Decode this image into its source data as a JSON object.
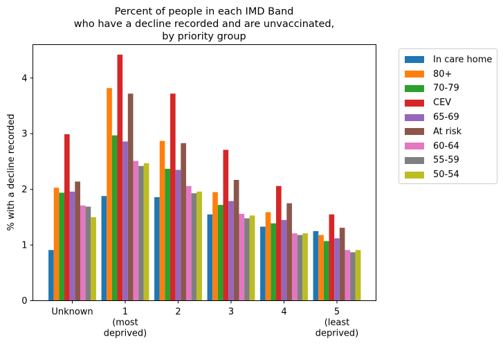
{
  "chart_data": {
    "type": "bar",
    "title": "Percent of people in each IMD Band\nwho have a decline recorded and are unvaccinated,\nby priority group",
    "title_lines": [
      "Percent of people in each IMD Band",
      "who have a decline recorded and are unvaccinated,",
      "by priority group"
    ],
    "xlabel": "",
    "ylabel": "% with a decline recorded",
    "ylim": [
      0,
      4.6
    ],
    "yticks": [
      "0",
      "1",
      "2",
      "3",
      "4"
    ],
    "categories": [
      [
        "Unknown"
      ],
      [
        "1",
        "(most",
        "deprived)"
      ],
      [
        "2"
      ],
      [
        "3"
      ],
      [
        "4"
      ],
      [
        "5",
        "(least",
        "deprived)"
      ]
    ],
    "legend_position": "outside-right",
    "grid": false,
    "series": [
      {
        "name": "In care home",
        "color": "#1f77b4",
        "values": [
          0.91,
          1.88,
          1.86,
          1.55,
          1.33,
          1.25
        ]
      },
      {
        "name": "80+",
        "color": "#ff7f0e",
        "values": [
          2.03,
          3.82,
          2.87,
          1.95,
          1.59,
          1.18
        ]
      },
      {
        "name": "70-79",
        "color": "#2ca02c",
        "values": [
          1.94,
          2.97,
          2.37,
          1.72,
          1.39,
          1.07
        ]
      },
      {
        "name": "CEV",
        "color": "#d62728",
        "values": [
          2.99,
          4.42,
          3.72,
          2.71,
          2.06,
          1.55
        ]
      },
      {
        "name": "65-69",
        "color": "#9467bd",
        "values": [
          1.96,
          2.86,
          2.35,
          1.79,
          1.45,
          1.12
        ]
      },
      {
        "name": "At risk",
        "color": "#8c564b",
        "values": [
          2.14,
          3.72,
          2.83,
          2.17,
          1.75,
          1.31
        ]
      },
      {
        "name": "60-64",
        "color": "#e377c2",
        "values": [
          1.71,
          2.51,
          2.06,
          1.56,
          1.21,
          0.91
        ]
      },
      {
        "name": "55-59",
        "color": "#7f7f7f",
        "values": [
          1.69,
          2.42,
          1.93,
          1.48,
          1.18,
          0.87
        ]
      },
      {
        "name": "50-54",
        "color": "#bcbd22",
        "values": [
          1.5,
          2.47,
          1.96,
          1.53,
          1.21,
          0.91
        ]
      }
    ]
  }
}
